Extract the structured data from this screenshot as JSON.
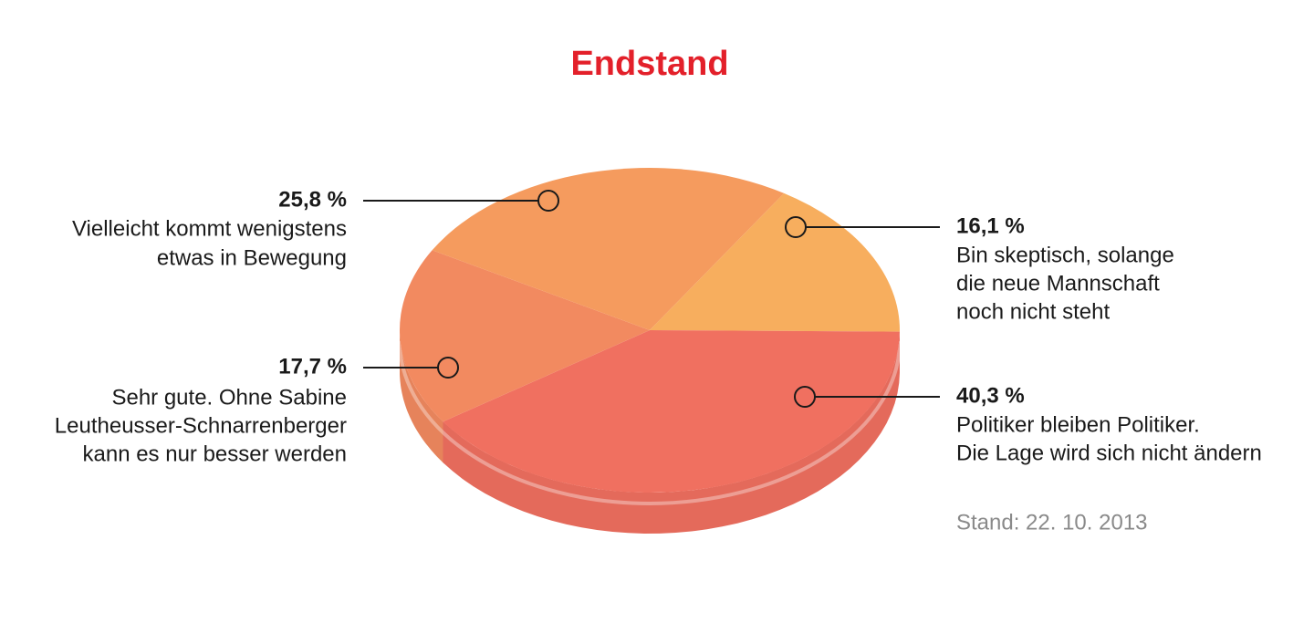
{
  "chart_data": {
    "type": "pie",
    "title": "Endstand",
    "values": [
      16.1,
      40.3,
      17.7,
      25.8
    ],
    "value_labels": [
      "16,1 %",
      "40,3 %",
      "17,7 %",
      "25,8 %"
    ],
    "categories": [
      [
        "Bin skeptisch, solange",
        "die neue Mannschaft",
        "noch nicht steht"
      ],
      [
        "Politiker bleiben Politiker.",
        "Die Lage wird sich nicht ändern"
      ],
      [
        "Sehr gute. Ohne Sabine",
        "Leutheusser-Schnarrenberger",
        "kann es nur besser werden"
      ],
      [
        "Vielleicht kommt wenigstens",
        "etwas in Bewegung"
      ]
    ],
    "colors": [
      "#f7ae5e",
      "#f07060",
      "#f28a60",
      "#f59b5e"
    ],
    "note": "Stand: 22. 10. 2013"
  }
}
